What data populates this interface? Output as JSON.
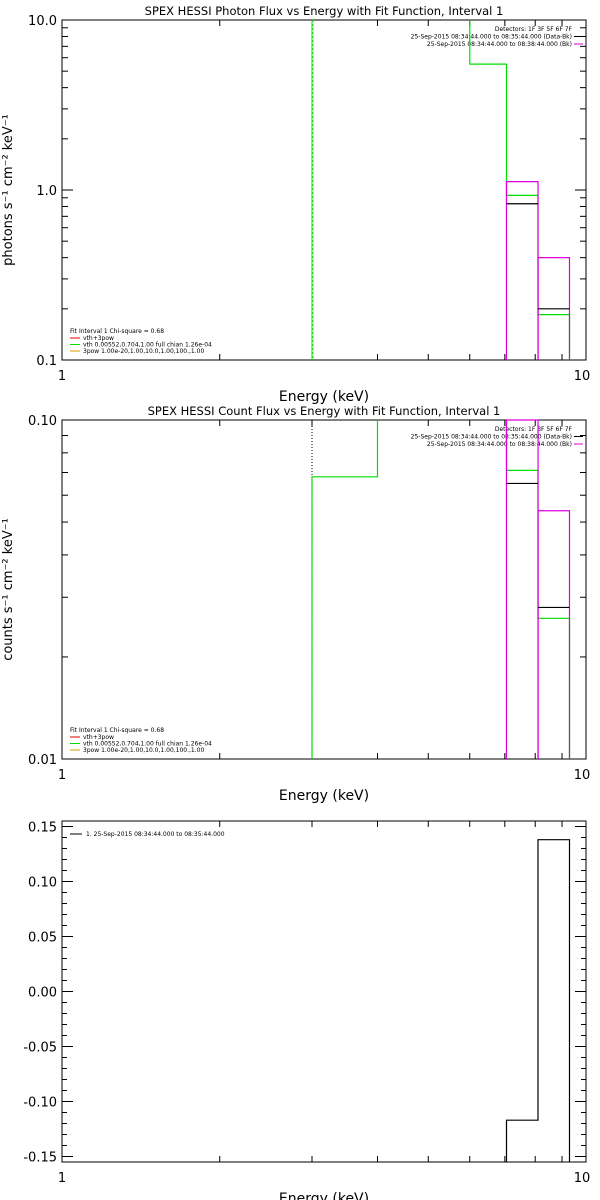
{
  "colors": {
    "background": "#ffffff",
    "axis": "#000000",
    "green": "#00dd00",
    "magenta": "#dd00dd",
    "black": "#000000",
    "orange": "#dd9900"
  },
  "chart_data": [
    {
      "type": "line",
      "title": "SPEX HESSI Photon Flux vs Energy with Fit Function, Interval 1",
      "xlabel": "Energy (keV)",
      "ylabel": "photons s⁻¹ cm⁻² keV⁻¹",
      "xscale": "log",
      "yscale": "log",
      "xlim": [
        1,
        10
      ],
      "ylim": [
        0.1,
        10
      ],
      "x_ticks": [
        "1",
        "10"
      ],
      "y_ticks": [
        "0.1",
        "1.0",
        "10.0"
      ],
      "header_lines": [
        "Detectors: 1F 3F 5F 6F 7F",
        "25-Sep-2015 08:34:44.000 to 08:35:44.000 (Data-Bk)",
        "25-Sep-2015 08:34:44.000 to 08:38:44.000 (Bk)"
      ],
      "legend_title": "Fit Interval 1    Chi-square = 0.68",
      "legend_items": [
        {
          "label": "vth+3pow",
          "color": "#dd0000"
        },
        {
          "label": "vth 0.00552,0.704,1.00  full chian 1.26e-04",
          "color": "#00dd00"
        },
        {
          "label": "3pow 1.00e-20,1.00,10.0,1.00,100.,1.00",
          "color": "#dd9900"
        }
      ],
      "series": [
        {
          "color": "#00dd00",
          "kind": "vline",
          "x": 3.0
        },
        {
          "color": "#00dd00",
          "kind": "step",
          "points": [
            [
              6.0,
              10.0
            ],
            [
              6.0,
              5.5
            ],
            [
              7.05,
              5.5
            ],
            [
              7.05,
              0.93
            ],
            [
              8.1,
              0.93
            ],
            [
              8.1,
              0.185
            ],
            [
              9.3,
              0.185
            ],
            [
              9.3,
              0.1
            ]
          ]
        },
        {
          "color": "#dd00dd",
          "kind": "bins",
          "bins": [
            [
              7.05,
              8.1,
              1.12
            ],
            [
              8.1,
              9.3,
              0.4
            ]
          ]
        },
        {
          "color": "#000000",
          "kind": "segments",
          "bins": [
            [
              7.05,
              8.1,
              0.83
            ],
            [
              8.1,
              9.3,
              0.2
            ]
          ]
        }
      ]
    },
    {
      "type": "line",
      "title": "SPEX HESSI Count Flux vs Energy with Fit Function, Interval 1",
      "xlabel": "Energy (keV)",
      "ylabel": "counts s⁻¹ cm⁻² keV⁻¹",
      "xscale": "log",
      "yscale": "log",
      "xlim": [
        1,
        10
      ],
      "ylim": [
        0.01,
        0.1
      ],
      "x_ticks": [
        "1",
        "10"
      ],
      "y_ticks": [
        "0.01",
        "0.10"
      ],
      "header_lines": [
        "Detectors: 1F 3F 5F 6F 7F",
        "25-Sep-2015 08:34:44.000 to 08:35:44.000 (Data-Bk)",
        "25-Sep-2015 08:34:44.000 to 08:38:44.000 (Bk)"
      ],
      "legend_title": "Fit Interval 1    Chi-square = 0.68",
      "legend_items": [
        {
          "label": "vth+3pow",
          "color": "#dd0000"
        },
        {
          "label": "vth 0.00552,0.704,1.00  full chian 1.26e-04",
          "color": "#00dd00"
        },
        {
          "label": "3pow 1.00e-20,1.00,10.0,1.00,100.,1.00",
          "color": "#dd9900"
        }
      ],
      "series": [
        {
          "color": "#000000",
          "kind": "vline-dotted",
          "x": 3.0
        },
        {
          "color": "#00dd00",
          "kind": "step",
          "points": [
            [
              3.0,
              0.01
            ],
            [
              3.0,
              0.068
            ],
            [
              4.0,
              0.068
            ],
            [
              4.0,
              0.1
            ]
          ]
        },
        {
          "color": "#00dd00",
          "kind": "step",
          "points": [
            [
              7.05,
              0.1
            ],
            [
              7.05,
              0.071
            ],
            [
              8.1,
              0.071
            ],
            [
              8.1,
              0.026
            ],
            [
              9.3,
              0.026
            ],
            [
              9.3,
              0.01
            ]
          ]
        },
        {
          "color": "#dd00dd",
          "kind": "bins",
          "bins": [
            [
              7.05,
              8.1,
              0.1
            ],
            [
              8.1,
              9.3,
              0.054
            ]
          ]
        },
        {
          "color": "#000000",
          "kind": "segments",
          "bins": [
            [
              7.05,
              8.1,
              0.065
            ],
            [
              8.1,
              9.3,
              0.028
            ]
          ]
        }
      ]
    },
    {
      "type": "line",
      "title": "",
      "xlabel": "Energy (keV)",
      "ylabel": "",
      "xscale": "log",
      "yscale": "linear",
      "xlim": [
        1,
        10
      ],
      "ylim": [
        -0.155,
        0.155
      ],
      "x_ticks": [
        "1",
        "10"
      ],
      "y_ticks": [
        "-0.15",
        "-0.10",
        "-0.05",
        "0.00",
        "0.05",
        "0.10",
        "0.15"
      ],
      "legend_items": [
        {
          "label": "1. 25-Sep-2015 08:34:44.000 to 08:35:44.000",
          "color": "#000000"
        }
      ],
      "series": [
        {
          "color": "#000000",
          "kind": "step",
          "points": [
            [
              7.05,
              -0.155
            ],
            [
              7.05,
              -0.117
            ],
            [
              8.1,
              -0.117
            ],
            [
              8.1,
              0.138
            ],
            [
              9.3,
              0.138
            ],
            [
              9.3,
              -0.155
            ]
          ]
        }
      ]
    }
  ]
}
